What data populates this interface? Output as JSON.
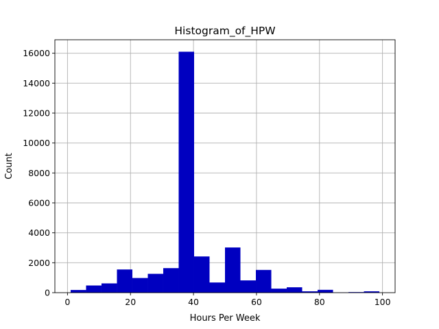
{
  "chart_data": {
    "type": "bar",
    "title": "Histogram_of_HPW",
    "xlabel": "Hours Per Week",
    "ylabel": "Count",
    "xlim": [
      -4,
      104
    ],
    "ylim": [
      0,
      16900
    ],
    "xticks": [
      0,
      20,
      40,
      60,
      80,
      100
    ],
    "yticks": [
      0,
      2000,
      4000,
      6000,
      8000,
      10000,
      12000,
      14000,
      16000
    ],
    "xtick_labels": [
      "0",
      "20",
      "40",
      "60",
      "80",
      "100"
    ],
    "ytick_labels": [
      "0",
      "2000",
      "4000",
      "6000",
      "8000",
      "10000",
      "12000",
      "14000",
      "16000"
    ],
    "grid": true,
    "bar_color": "#0000c0",
    "bins": [
      {
        "x0": 1.0,
        "x1": 5.9,
        "count": 180
      },
      {
        "x0": 5.9,
        "x1": 10.8,
        "count": 480
      },
      {
        "x0": 10.8,
        "x1": 15.7,
        "count": 620
      },
      {
        "x0": 15.7,
        "x1": 20.6,
        "count": 1550
      },
      {
        "x0": 20.6,
        "x1": 25.5,
        "count": 980
      },
      {
        "x0": 25.5,
        "x1": 30.4,
        "count": 1260
      },
      {
        "x0": 30.4,
        "x1": 35.3,
        "count": 1640
      },
      {
        "x0": 35.3,
        "x1": 40.2,
        "count": 16100
      },
      {
        "x0": 40.2,
        "x1": 45.1,
        "count": 2420
      },
      {
        "x0": 45.1,
        "x1": 50.0,
        "count": 680
      },
      {
        "x0": 50.0,
        "x1": 54.9,
        "count": 3020
      },
      {
        "x0": 54.9,
        "x1": 59.8,
        "count": 820
      },
      {
        "x0": 59.8,
        "x1": 64.7,
        "count": 1520
      },
      {
        "x0": 64.7,
        "x1": 69.6,
        "count": 270
      },
      {
        "x0": 69.6,
        "x1": 74.5,
        "count": 360
      },
      {
        "x0": 74.5,
        "x1": 79.4,
        "count": 90
      },
      {
        "x0": 79.4,
        "x1": 84.3,
        "count": 190
      },
      {
        "x0": 84.3,
        "x1": 89.2,
        "count": 20
      },
      {
        "x0": 89.2,
        "x1": 94.1,
        "count": 40
      },
      {
        "x0": 94.1,
        "x1": 99.0,
        "count": 90
      }
    ]
  }
}
